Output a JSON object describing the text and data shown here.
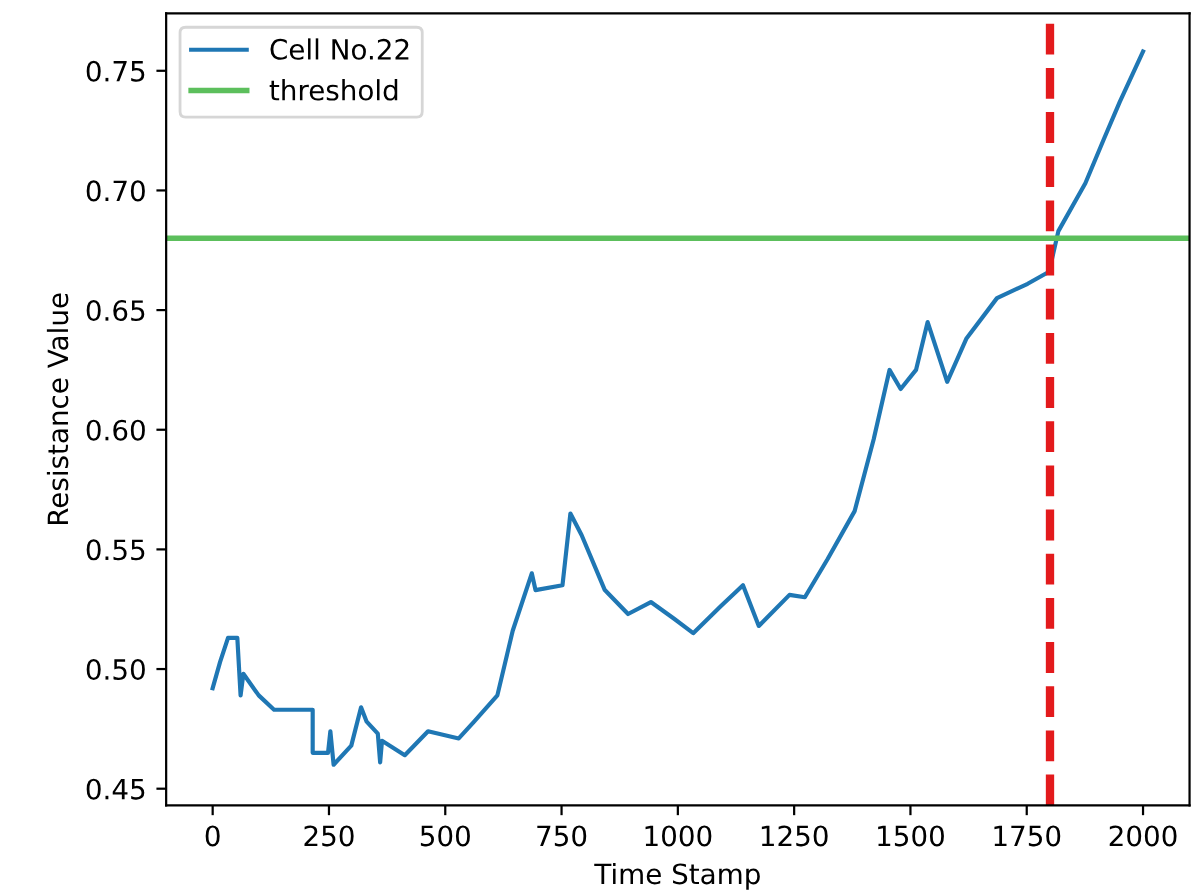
{
  "chart_data": {
    "type": "line",
    "xlabel": "Time Stamp",
    "ylabel": "Resistance Value",
    "xlim": [
      -100,
      2100
    ],
    "xticks": [
      0,
      250,
      500,
      750,
      1000,
      1250,
      1500,
      1750,
      2000
    ],
    "ylim": [
      0.443,
      0.774
    ],
    "yticks": [
      0.45,
      {
        "value": 0.5,
        "label": "0.50"
      },
      0.55,
      {
        "value": 0.6,
        "label": "0.60"
      },
      0.65,
      {
        "value": 0.7,
        "label": "0.70"
      },
      0.75
    ],
    "series": [
      {
        "name": "Cell No.22",
        "color": "#1f77b4",
        "x": [
          0,
          16,
          33,
          53,
          60,
          66,
          99,
          132,
          215,
          215,
          248,
          253,
          260,
          298,
          319,
          331,
          355,
          360,
          364,
          413,
          463,
          529,
          562,
          612,
          645,
          686,
          694,
          752,
          769,
          793,
          843,
          893,
          942,
          992,
          1033,
          1091,
          1140,
          1174,
          1240,
          1273,
          1322,
          1380,
          1421,
          1455,
          1479,
          1512,
          1537,
          1579,
          1620,
          1686,
          1752,
          1798,
          1818,
          1876,
          1917,
          1950,
          2000
        ],
        "values": [
          0.492,
          0.503,
          0.513,
          0.513,
          0.489,
          0.498,
          0.489,
          0.483,
          0.483,
          0.465,
          0.465,
          0.474,
          0.46,
          0.468,
          0.484,
          0.478,
          0.473,
          0.461,
          0.47,
          0.464,
          0.474,
          0.471,
          0.478,
          0.489,
          0.516,
          0.54,
          0.533,
          0.535,
          0.565,
          0.556,
          0.533,
          0.523,
          0.528,
          0.521,
          0.515,
          0.526,
          0.535,
          0.518,
          0.531,
          0.53,
          0.546,
          0.566,
          0.596,
          0.625,
          0.617,
          0.625,
          0.645,
          0.62,
          0.638,
          0.655,
          0.661,
          0.666,
          0.683,
          0.703,
          0.722,
          0.737,
          0.758
        ]
      }
    ],
    "ref_lines": [
      {
        "axis": "y",
        "value": 0.68,
        "label": "threshold",
        "color": "#5cbf5c",
        "line_style": "solid"
      },
      {
        "axis": "x",
        "value": 1800,
        "color": "#e31a1c",
        "line_style": "dashed"
      }
    ],
    "legend": "top left",
    "grid": false
  }
}
